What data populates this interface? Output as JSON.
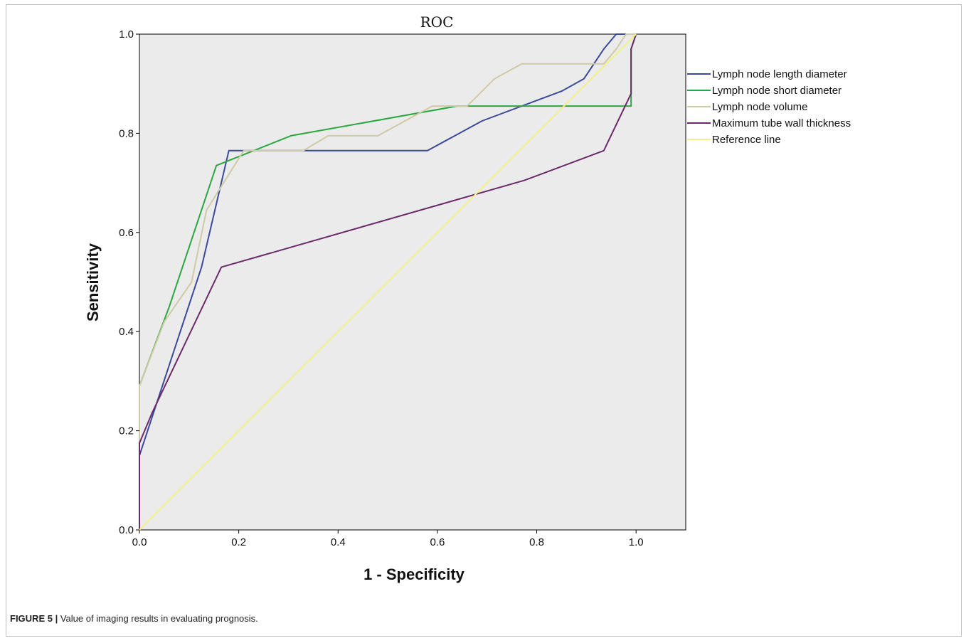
{
  "caption": {
    "label": "FIGURE 5 |",
    "text": " Value of imaging results in evaluating prognosis."
  },
  "chart_data": {
    "type": "line",
    "title": "ROC",
    "xlabel": "1 - Specificity",
    "ylabel": "Sensitivity",
    "xlim": [
      0,
      1.1
    ],
    "ylim": [
      0,
      1
    ],
    "xticks": [
      0.0,
      0.2,
      0.4,
      0.6,
      0.8,
      1.0
    ],
    "yticks": [
      0.0,
      0.2,
      0.4,
      0.6,
      0.8,
      1.0
    ],
    "tick_labels_x": [
      "0.0",
      "0.2",
      "0.4",
      "0.6",
      "0.8",
      "1.0"
    ],
    "tick_labels_y": [
      "0.0",
      "0.2",
      "0.4",
      "0.6",
      "0.8",
      "1.0"
    ],
    "grid": false,
    "legend_position": "right",
    "plot_background": "#ebebeb",
    "series": [
      {
        "name": "Lymph node length diameter",
        "color": "#3b4a9b",
        "points": [
          [
            0,
            0
          ],
          [
            0,
            0.15
          ],
          [
            0.125,
            0.53
          ],
          [
            0.18,
            0.765
          ],
          [
            0.58,
            0.765
          ],
          [
            0.69,
            0.825
          ],
          [
            0.85,
            0.885
          ],
          [
            0.895,
            0.91
          ],
          [
            0.935,
            0.97
          ],
          [
            0.96,
            1.0
          ],
          [
            1.0,
            1.0
          ]
        ]
      },
      {
        "name": "Lymph node short diameter",
        "color": "#2aa83f",
        "points": [
          [
            0,
            0
          ],
          [
            0,
            0.29
          ],
          [
            0.06,
            0.45
          ],
          [
            0.155,
            0.735
          ],
          [
            0.305,
            0.795
          ],
          [
            0.64,
            0.855
          ],
          [
            0.99,
            0.855
          ],
          [
            0.99,
            0.97
          ],
          [
            1.0,
            1.0
          ]
        ]
      },
      {
        "name": "Lymph node volume",
        "color": "#cfc9a6",
        "points": [
          [
            0,
            0
          ],
          [
            0,
            0.29
          ],
          [
            0.05,
            0.42
          ],
          [
            0.105,
            0.5
          ],
          [
            0.135,
            0.645
          ],
          [
            0.21,
            0.765
          ],
          [
            0.33,
            0.765
          ],
          [
            0.38,
            0.795
          ],
          [
            0.48,
            0.795
          ],
          [
            0.59,
            0.855
          ],
          [
            0.66,
            0.855
          ],
          [
            0.715,
            0.91
          ],
          [
            0.77,
            0.94
          ],
          [
            0.935,
            0.94
          ],
          [
            0.96,
            0.97
          ],
          [
            0.98,
            1.0
          ],
          [
            1.0,
            1.0
          ]
        ]
      },
      {
        "name": "Maximum tube wall thickness",
        "color": "#6b2a69",
        "points": [
          [
            0,
            0
          ],
          [
            0,
            0.175
          ],
          [
            0.025,
            0.235
          ],
          [
            0.165,
            0.53
          ],
          [
            0.775,
            0.705
          ],
          [
            0.935,
            0.765
          ],
          [
            0.99,
            0.88
          ],
          [
            0.99,
            0.97
          ],
          [
            1.0,
            1.0
          ]
        ]
      },
      {
        "name": "Reference line",
        "color": "#f2f08a",
        "points": [
          [
            0,
            0
          ],
          [
            1,
            1
          ]
        ]
      }
    ]
  }
}
